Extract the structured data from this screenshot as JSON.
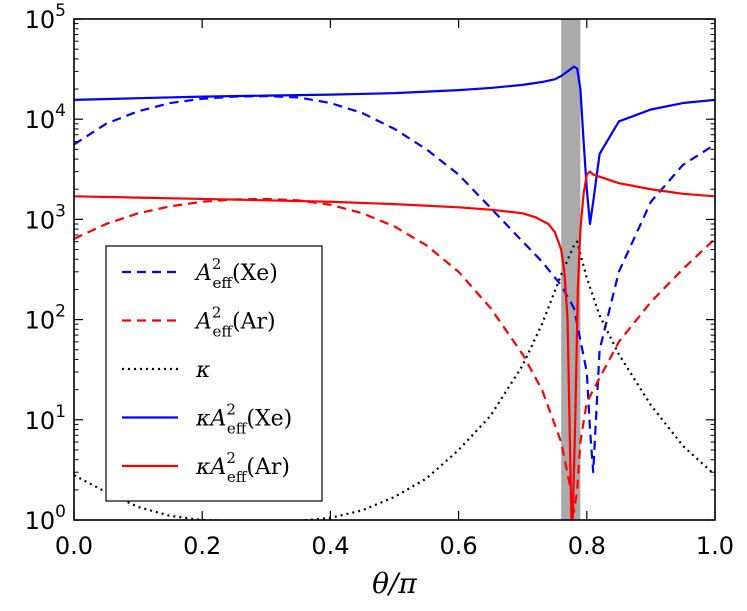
{
  "chart_data": {
    "type": "line",
    "title": "",
    "xlabel": "θ/π",
    "ylabel": "",
    "xlim": [
      0.0,
      1.0
    ],
    "ylim": [
      1,
      100000
    ],
    "yscale": "log",
    "x_ticks": [
      0.0,
      0.2,
      0.4,
      0.6,
      0.8,
      1.0
    ],
    "x_tick_labels": [
      "0.0",
      "0.2",
      "0.4",
      "0.6",
      "0.8",
      "1.0"
    ],
    "y_ticks": [
      {
        "value": 1,
        "base": "10",
        "exp": "0"
      },
      {
        "value": 10,
        "base": "10",
        "exp": "1"
      },
      {
        "value": 100,
        "base": "10",
        "exp": "2"
      },
      {
        "value": 1000,
        "base": "10",
        "exp": "3"
      },
      {
        "value": 10000,
        "base": "10",
        "exp": "4"
      },
      {
        "value": 100000,
        "base": "10",
        "exp": "5"
      }
    ],
    "shaded_region": {
      "x": [
        0.76,
        0.79
      ],
      "color": "#aaaaaa"
    },
    "legend_position": "lower-left",
    "series": [
      {
        "name": "A_eff^2(Xe)",
        "label_parts": {
          "pre": "",
          "main": "A",
          "sub": "eff",
          "sup": "2",
          "arg": "(Xe)"
        },
        "color": "#0000ff",
        "dash": "dashed",
        "x": [
          0.0,
          0.05,
          0.1,
          0.15,
          0.2,
          0.25,
          0.3,
          0.35,
          0.4,
          0.45,
          0.5,
          0.55,
          0.6,
          0.65,
          0.7,
          0.73,
          0.76,
          0.78,
          0.8,
          0.805,
          0.81,
          0.82,
          0.85,
          0.9,
          0.95,
          1.0
        ],
        "y": [
          5600,
          9000,
          12000,
          14500,
          16000,
          16800,
          17000,
          16500,
          14500,
          11500,
          8000,
          5000,
          2800,
          1300,
          600,
          380,
          220,
          130,
          30,
          8,
          3,
          50,
          300,
          1500,
          3500,
          5600
        ]
      },
      {
        "name": "A_eff^2(Ar)",
        "label_parts": {
          "pre": "",
          "main": "A",
          "sub": "eff",
          "sup": "2",
          "arg": "(Ar)"
        },
        "color": "#ff0000",
        "dash": "dashed",
        "x": [
          0.0,
          0.05,
          0.1,
          0.15,
          0.2,
          0.25,
          0.3,
          0.35,
          0.4,
          0.45,
          0.5,
          0.55,
          0.6,
          0.65,
          0.7,
          0.73,
          0.76,
          0.775,
          0.78,
          0.785,
          0.79,
          0.8,
          0.85,
          0.9,
          0.95,
          1.0
        ],
        "y": [
          640,
          900,
          1150,
          1350,
          1500,
          1580,
          1600,
          1550,
          1400,
          1150,
          850,
          550,
          300,
          130,
          45,
          20,
          6,
          2,
          1.2,
          2,
          6,
          15,
          60,
          150,
          320,
          640
        ]
      },
      {
        "name": "κ",
        "label_parts": {
          "pre": "κ",
          "main": "",
          "sub": "",
          "sup": "",
          "arg": ""
        },
        "color": "#000000",
        "dash": "dotted",
        "x": [
          0.0,
          0.05,
          0.1,
          0.15,
          0.2,
          0.25,
          0.3,
          0.35,
          0.4,
          0.45,
          0.5,
          0.55,
          0.6,
          0.65,
          0.7,
          0.73,
          0.76,
          0.78,
          0.785,
          0.79,
          0.8,
          0.82,
          0.85,
          0.9,
          0.95,
          1.0
        ],
        "y": [
          2.8,
          1.9,
          1.35,
          1.1,
          1.0,
          0.98,
          0.97,
          0.98,
          1.05,
          1.25,
          1.7,
          2.6,
          5,
          11,
          35,
          90,
          280,
          550,
          600,
          450,
          260,
          110,
          45,
          14,
          5.5,
          2.8
        ]
      },
      {
        "name": "κA_eff^2(Xe)",
        "label_parts": {
          "pre": "κ",
          "main": "A",
          "sub": "eff",
          "sup": "2",
          "arg": "(Xe)"
        },
        "color": "#0000ff",
        "dash": "solid",
        "x": [
          0.0,
          0.1,
          0.2,
          0.3,
          0.4,
          0.5,
          0.6,
          0.65,
          0.7,
          0.73,
          0.75,
          0.76,
          0.77,
          0.78,
          0.785,
          0.79,
          0.795,
          0.8,
          0.805,
          0.81,
          0.82,
          0.85,
          0.9,
          0.95,
          1.0
        ],
        "y": [
          15600,
          16200,
          16800,
          17200,
          17600,
          18200,
          19500,
          20500,
          22000,
          23500,
          25000,
          27000,
          30000,
          33500,
          32000,
          20000,
          6000,
          2000,
          900,
          1500,
          4500,
          9500,
          12500,
          14500,
          15600
        ]
      },
      {
        "name": "κA_eff^2(Ar)",
        "label_parts": {
          "pre": "κ",
          "main": "A",
          "sub": "eff",
          "sup": "2",
          "arg": "(Ar)"
        },
        "color": "#ff0000",
        "dash": "solid",
        "x": [
          0.0,
          0.1,
          0.2,
          0.3,
          0.4,
          0.5,
          0.6,
          0.65,
          0.7,
          0.72,
          0.74,
          0.75,
          0.76,
          0.765,
          0.77,
          0.773,
          0.776,
          0.778,
          0.782,
          0.786,
          0.79,
          0.795,
          0.8,
          0.805,
          0.81,
          0.85,
          0.9,
          0.95,
          1.0
        ],
        "y": [
          1700,
          1650,
          1600,
          1550,
          1500,
          1420,
          1320,
          1250,
          1150,
          1050,
          900,
          750,
          500,
          300,
          100,
          10,
          1,
          1,
          10,
          200,
          800,
          1800,
          2800,
          3000,
          2800,
          2300,
          2000,
          1800,
          1700
        ]
      }
    ]
  }
}
